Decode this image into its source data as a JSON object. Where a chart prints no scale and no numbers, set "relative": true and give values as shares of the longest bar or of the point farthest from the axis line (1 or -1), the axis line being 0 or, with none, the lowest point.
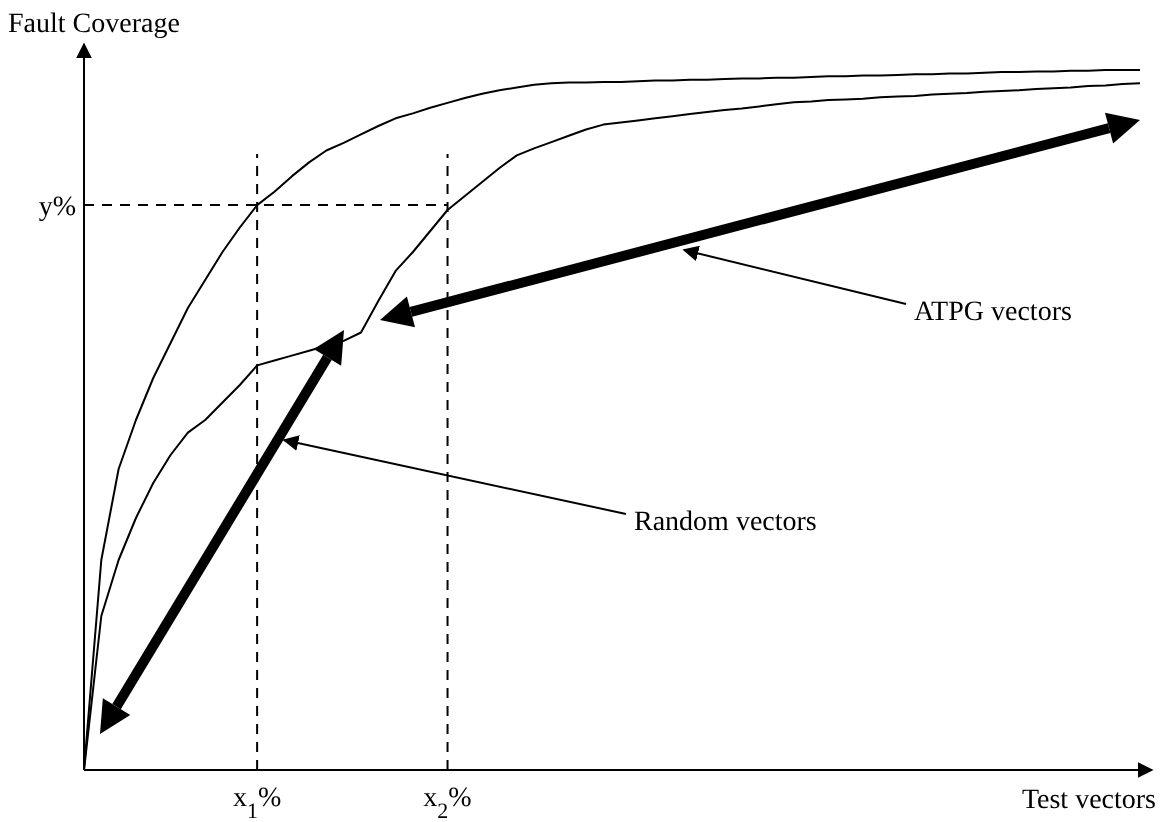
{
  "chart_data": {
    "type": "line",
    "relative": true,
    "xlabel": "Test vectors",
    "ylabel": "Fault Coverage",
    "categories": [
      null,
      null,
      null,
      null,
      null,
      null,
      null,
      null,
      null,
      null,
      "x$_{1}$%",
      null,
      null,
      null,
      null,
      null,
      null,
      null,
      null,
      null,
      null,
      "x$_{2}$%",
      null,
      null,
      null,
      null,
      null,
      null,
      null,
      null,
      null,
      null,
      null,
      null,
      null,
      null,
      null,
      null,
      null,
      null,
      null,
      null,
      null,
      null,
      null,
      null,
      null,
      null,
      null,
      null,
      null,
      null,
      null,
      null,
      null,
      null,
      null,
      null,
      null,
      null,
      null,
      null
    ],
    "series": [
      {
        "color": "#000000",
        "values": [
          0,
          0.3,
          0.43,
          0.5,
          0.56,
          0.61,
          0.66,
          0.7,
          0.74,
          0.775,
          0.807,
          0.826,
          0.848,
          0.868,
          0.885,
          0.896,
          0.908,
          0.92,
          0.931,
          0.938,
          0.946,
          0.953,
          0.96,
          0.966,
          0.971,
          0.975,
          0.979,
          0.981,
          0.982,
          0.982,
          0.983,
          0.983,
          0.984,
          0.985,
          0.985,
          0.986,
          0.986,
          0.987,
          0.988,
          0.988,
          0.989,
          0.989,
          0.99,
          0.991,
          0.991,
          0.992,
          0.992,
          0.993,
          0.994,
          0.994,
          0.995,
          0.995,
          0.996,
          0.997,
          0.997,
          0.998,
          0.998,
          0.999,
          0.999,
          1.0,
          1.0,
          1.0
        ]
      },
      {
        "color": "#000000",
        "values": [
          0,
          0.22,
          0.3,
          0.36,
          0.41,
          0.45,
          0.482,
          0.5,
          0.525,
          0.55,
          0.578,
          0.585,
          0.592,
          0.599,
          0.606,
          0.613,
          0.625,
          0.67,
          0.713,
          0.74,
          0.77,
          0.8,
          0.82,
          0.84,
          0.86,
          0.878,
          0.888,
          0.897,
          0.906,
          0.915,
          0.922,
          0.925,
          0.928,
          0.931,
          0.934,
          0.937,
          0.94,
          0.943,
          0.945,
          0.948,
          0.951,
          0.954,
          0.955,
          0.957,
          0.958,
          0.959,
          0.961,
          0.962,
          0.963,
          0.965,
          0.966,
          0.967,
          0.969,
          0.97,
          0.971,
          0.973,
          0.974,
          0.975,
          0.977,
          0.978,
          0.98,
          0.981
        ]
      }
    ],
    "ref_lines": [
      {
        "axis": "y",
        "value": 0.807,
        "label": "y%",
        "line_style": "dashed"
      },
      {
        "axis": "x",
        "value": "x$_{1}$%",
        "line_style": "dashed"
      },
      {
        "axis": "x",
        "value": "x$_{2}$%",
        "line_style": "dashed"
      }
    ],
    "annotations": [
      "Random vectors",
      "ATPG vectors"
    ],
    "marker": "none",
    "line_style": "solid"
  }
}
